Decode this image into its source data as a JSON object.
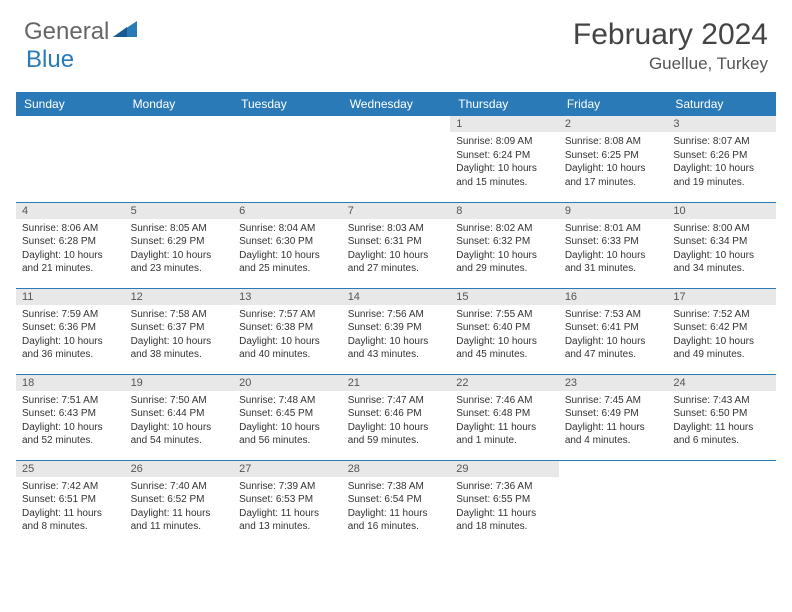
{
  "brand": {
    "part1": "General",
    "part2": "Blue"
  },
  "title": "February 2024",
  "location": "Guellue, Turkey",
  "colors": {
    "header_bg": "#2a7ab8",
    "header_text": "#ffffff",
    "daynum_bg": "#e8e8e8",
    "text": "#333333",
    "border": "#2a7ab8"
  },
  "weekdays": [
    "Sunday",
    "Monday",
    "Tuesday",
    "Wednesday",
    "Thursday",
    "Friday",
    "Saturday"
  ],
  "weeks": [
    [
      null,
      null,
      null,
      null,
      {
        "n": "1",
        "sr": "8:09 AM",
        "ss": "6:24 PM",
        "dl": "10 hours and 15 minutes."
      },
      {
        "n": "2",
        "sr": "8:08 AM",
        "ss": "6:25 PM",
        "dl": "10 hours and 17 minutes."
      },
      {
        "n": "3",
        "sr": "8:07 AM",
        "ss": "6:26 PM",
        "dl": "10 hours and 19 minutes."
      }
    ],
    [
      {
        "n": "4",
        "sr": "8:06 AM",
        "ss": "6:28 PM",
        "dl": "10 hours and 21 minutes."
      },
      {
        "n": "5",
        "sr": "8:05 AM",
        "ss": "6:29 PM",
        "dl": "10 hours and 23 minutes."
      },
      {
        "n": "6",
        "sr": "8:04 AM",
        "ss": "6:30 PM",
        "dl": "10 hours and 25 minutes."
      },
      {
        "n": "7",
        "sr": "8:03 AM",
        "ss": "6:31 PM",
        "dl": "10 hours and 27 minutes."
      },
      {
        "n": "8",
        "sr": "8:02 AM",
        "ss": "6:32 PM",
        "dl": "10 hours and 29 minutes."
      },
      {
        "n": "9",
        "sr": "8:01 AM",
        "ss": "6:33 PM",
        "dl": "10 hours and 31 minutes."
      },
      {
        "n": "10",
        "sr": "8:00 AM",
        "ss": "6:34 PM",
        "dl": "10 hours and 34 minutes."
      }
    ],
    [
      {
        "n": "11",
        "sr": "7:59 AM",
        "ss": "6:36 PM",
        "dl": "10 hours and 36 minutes."
      },
      {
        "n": "12",
        "sr": "7:58 AM",
        "ss": "6:37 PM",
        "dl": "10 hours and 38 minutes."
      },
      {
        "n": "13",
        "sr": "7:57 AM",
        "ss": "6:38 PM",
        "dl": "10 hours and 40 minutes."
      },
      {
        "n": "14",
        "sr": "7:56 AM",
        "ss": "6:39 PM",
        "dl": "10 hours and 43 minutes."
      },
      {
        "n": "15",
        "sr": "7:55 AM",
        "ss": "6:40 PM",
        "dl": "10 hours and 45 minutes."
      },
      {
        "n": "16",
        "sr": "7:53 AM",
        "ss": "6:41 PM",
        "dl": "10 hours and 47 minutes."
      },
      {
        "n": "17",
        "sr": "7:52 AM",
        "ss": "6:42 PM",
        "dl": "10 hours and 49 minutes."
      }
    ],
    [
      {
        "n": "18",
        "sr": "7:51 AM",
        "ss": "6:43 PM",
        "dl": "10 hours and 52 minutes."
      },
      {
        "n": "19",
        "sr": "7:50 AM",
        "ss": "6:44 PM",
        "dl": "10 hours and 54 minutes."
      },
      {
        "n": "20",
        "sr": "7:48 AM",
        "ss": "6:45 PM",
        "dl": "10 hours and 56 minutes."
      },
      {
        "n": "21",
        "sr": "7:47 AM",
        "ss": "6:46 PM",
        "dl": "10 hours and 59 minutes."
      },
      {
        "n": "22",
        "sr": "7:46 AM",
        "ss": "6:48 PM",
        "dl": "11 hours and 1 minute."
      },
      {
        "n": "23",
        "sr": "7:45 AM",
        "ss": "6:49 PM",
        "dl": "11 hours and 4 minutes."
      },
      {
        "n": "24",
        "sr": "7:43 AM",
        "ss": "6:50 PM",
        "dl": "11 hours and 6 minutes."
      }
    ],
    [
      {
        "n": "25",
        "sr": "7:42 AM",
        "ss": "6:51 PM",
        "dl": "11 hours and 8 minutes."
      },
      {
        "n": "26",
        "sr": "7:40 AM",
        "ss": "6:52 PM",
        "dl": "11 hours and 11 minutes."
      },
      {
        "n": "27",
        "sr": "7:39 AM",
        "ss": "6:53 PM",
        "dl": "11 hours and 13 minutes."
      },
      {
        "n": "28",
        "sr": "7:38 AM",
        "ss": "6:54 PM",
        "dl": "11 hours and 16 minutes."
      },
      {
        "n": "29",
        "sr": "7:36 AM",
        "ss": "6:55 PM",
        "dl": "11 hours and 18 minutes."
      },
      null,
      null
    ]
  ],
  "labels": {
    "sunrise": "Sunrise: ",
    "sunset": "Sunset: ",
    "daylight": "Daylight: "
  }
}
